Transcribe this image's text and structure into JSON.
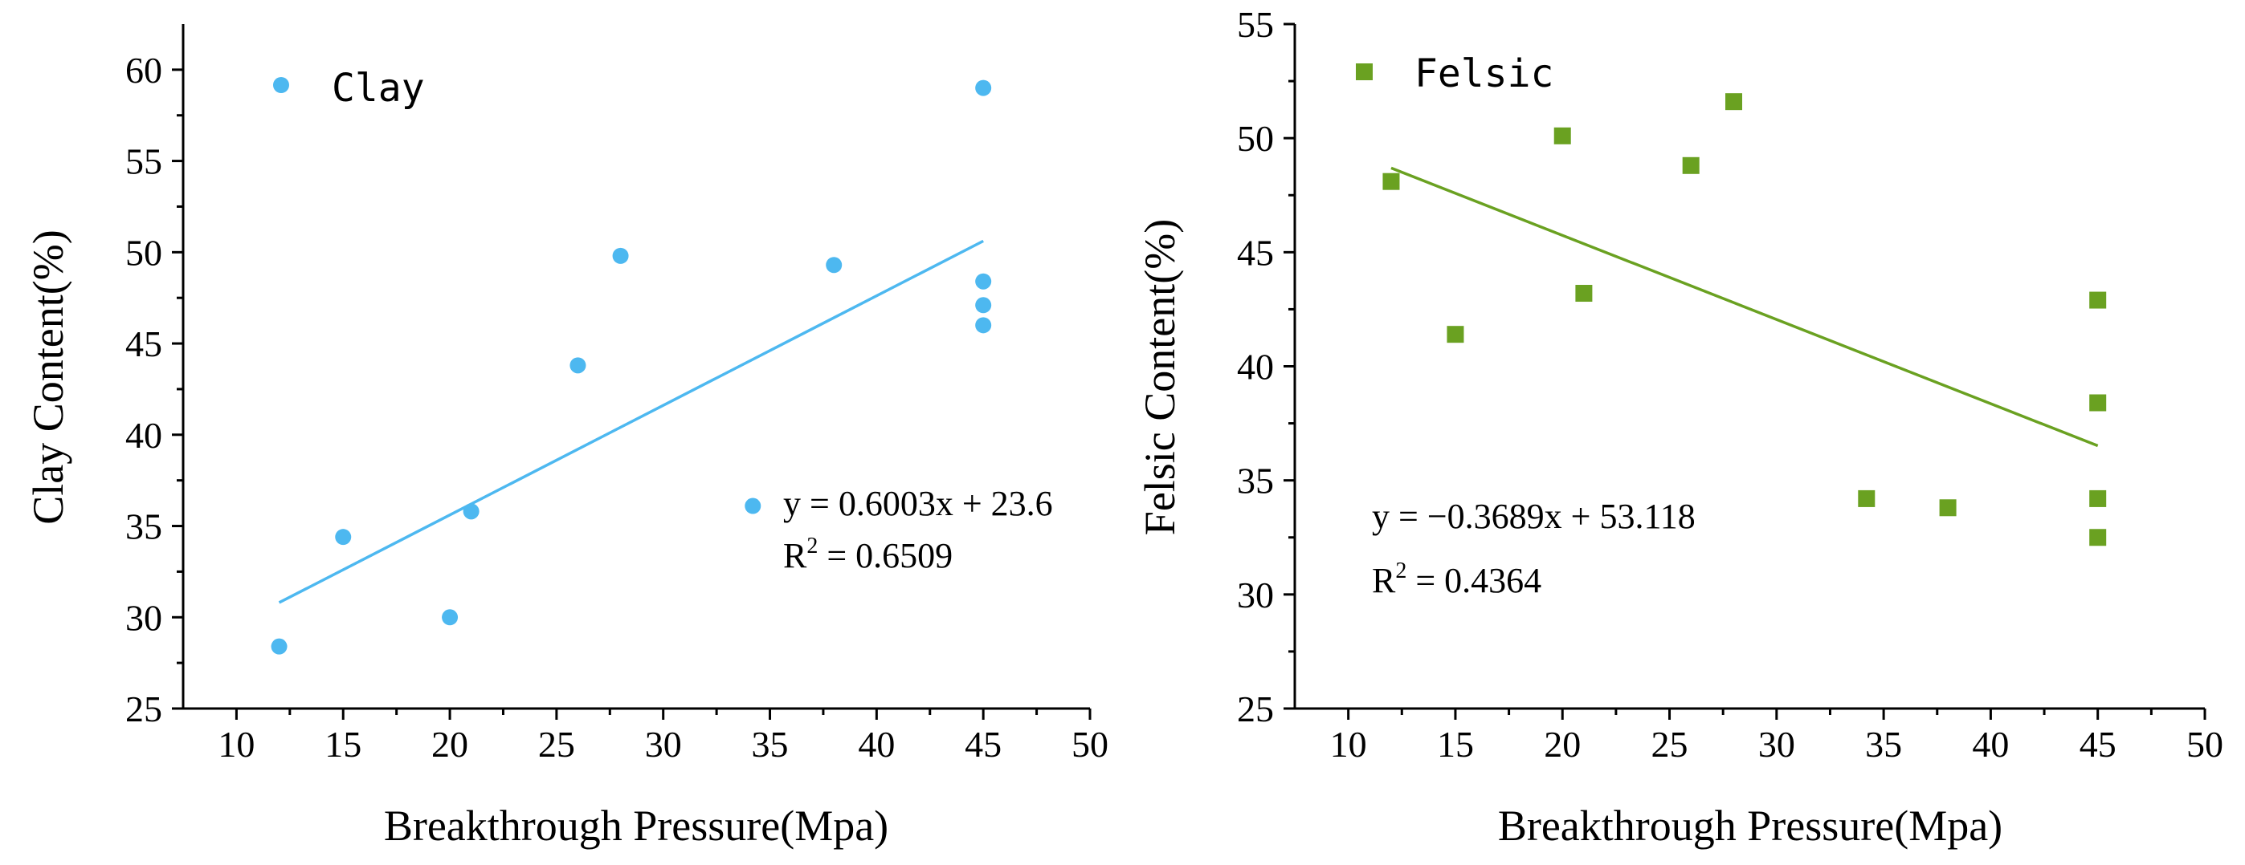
{
  "chart_data": [
    {
      "type": "scatter",
      "xlabel": "Breakthrough Pressure(Mpa)",
      "ylabel": "Clay Content(%)",
      "xlim": [
        7.5,
        50
      ],
      "ylim": [
        25,
        62.5
      ],
      "xticks": [
        "10",
        "15",
        "20",
        "25",
        "30",
        "35",
        "40",
        "45",
        "50"
      ],
      "yticks": [
        "25",
        "30",
        "35",
        "40",
        "45",
        "50",
        "55",
        "60"
      ],
      "grid": false,
      "legend_position": "top-left",
      "marker": "circle",
      "color": "#4db8f0",
      "series": [
        {
          "name": "Clay",
          "x": [
            12,
            15,
            20,
            21,
            26,
            28,
            38,
            45,
            45,
            45,
            45
          ],
          "y": [
            28.4,
            34.4,
            30.0,
            35.8,
            43.8,
            49.8,
            49.3,
            59.0,
            48.4,
            47.1,
            46.0
          ]
        }
      ],
      "fit": {
        "slope": 0.6003,
        "intercept": 23.6,
        "x_range": [
          12,
          45
        ],
        "equation": "y = 0.6003x + 23.6",
        "r2_prefix": "R",
        "r2_sup": "2",
        "r2_suffix": " = 0.6509"
      },
      "extra_point": {
        "x": 34.2,
        "y": 36.1
      }
    },
    {
      "type": "scatter",
      "xlabel": "Breakthrough Pressure(Mpa)",
      "ylabel": "Felsic Content(%)",
      "xlim": [
        7.5,
        50
      ],
      "ylim": [
        25,
        55
      ],
      "xticks": [
        "10",
        "15",
        "20",
        "25",
        "30",
        "35",
        "40",
        "45",
        "50"
      ],
      "yticks": [
        "25",
        "30",
        "35",
        "40",
        "45",
        "50",
        "55"
      ],
      "grid": false,
      "legend_position": "top-left",
      "marker": "square",
      "color": "#6aa121",
      "series": [
        {
          "name": "Felsic",
          "x": [
            12,
            15,
            20,
            21,
            26,
            28,
            34.2,
            38,
            45,
            45,
            45,
            45
          ],
          "y": [
            48.1,
            41.4,
            50.1,
            43.2,
            48.8,
            51.6,
            34.2,
            33.8,
            42.9,
            38.4,
            34.2,
            32.5
          ]
        }
      ],
      "fit": {
        "slope": -0.3689,
        "intercept": 53.118,
        "x_range": [
          12,
          45
        ],
        "equation": "y = −0.3689x + 53.118",
        "r2_prefix": "R",
        "r2_sup": "2",
        "r2_suffix": " = 0.4364"
      }
    }
  ]
}
